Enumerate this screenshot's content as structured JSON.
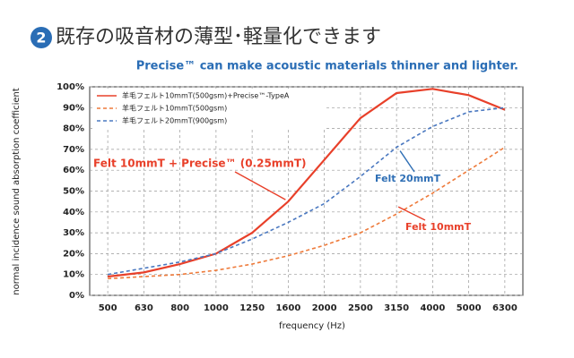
{
  "chart_data": {
    "type": "line",
    "title_number": "2",
    "title": "既存の吸音材の薄型･軽量化できます",
    "subtitle": "Precise™ can make acoustic materials thinner and lighter.",
    "x_label": "frequency (Hz)",
    "y_label": "normal incidence sound absorption coefficient",
    "categories": [
      "500",
      "630",
      "800",
      "1000",
      "1250",
      "1600",
      "2000",
      "2500",
      "3150",
      "4000",
      "5000",
      "6300"
    ],
    "ylim": [
      0,
      100
    ],
    "yticks": [
      {
        "value": 0,
        "label": "0%"
      },
      {
        "value": 10,
        "label": "10%"
      },
      {
        "value": 20,
        "label": "20%"
      },
      {
        "value": 30,
        "label": "30%"
      },
      {
        "value": 40,
        "label": "40%"
      },
      {
        "value": 50,
        "label": "50%"
      },
      {
        "value": 60,
        "label": "60%"
      },
      {
        "value": 70,
        "label": "70%"
      },
      {
        "value": 80,
        "label": "80%"
      },
      {
        "value": 90,
        "label": "90%"
      },
      {
        "value": 100,
        "label": "100%"
      }
    ],
    "grid": true,
    "legend": "top-left",
    "series": [
      {
        "name": "羊毛フェルト10mmT(500gsm)+Precise™-TypeA",
        "color": "#e8402a",
        "dash": false,
        "values": [
          9,
          11,
          15,
          20,
          30,
          45,
          65,
          85,
          97,
          99,
          96,
          89
        ]
      },
      {
        "name": "羊毛フェルト10mmT(500gsm)",
        "color": "#ee7a3a",
        "dash": true,
        "values": [
          8,
          9,
          10,
          12,
          15,
          19,
          24,
          30,
          39,
          49,
          60,
          71
        ]
      },
      {
        "name": "羊毛フェルト20mmT(900gsm)",
        "color": "#4a78c0",
        "dash": true,
        "values": [
          10,
          13,
          16,
          20,
          27,
          35,
          44,
          57,
          71,
          81,
          88,
          90
        ]
      }
    ],
    "annotations": [
      {
        "text": "Felt 10mmT + Precise™ (0.25mmT)",
        "color": "#e8402a"
      },
      {
        "text": "Felt 20mmT",
        "color": "#2f6fb5"
      },
      {
        "text": "Felt 10mmT",
        "color": "#e8402a"
      }
    ]
  }
}
